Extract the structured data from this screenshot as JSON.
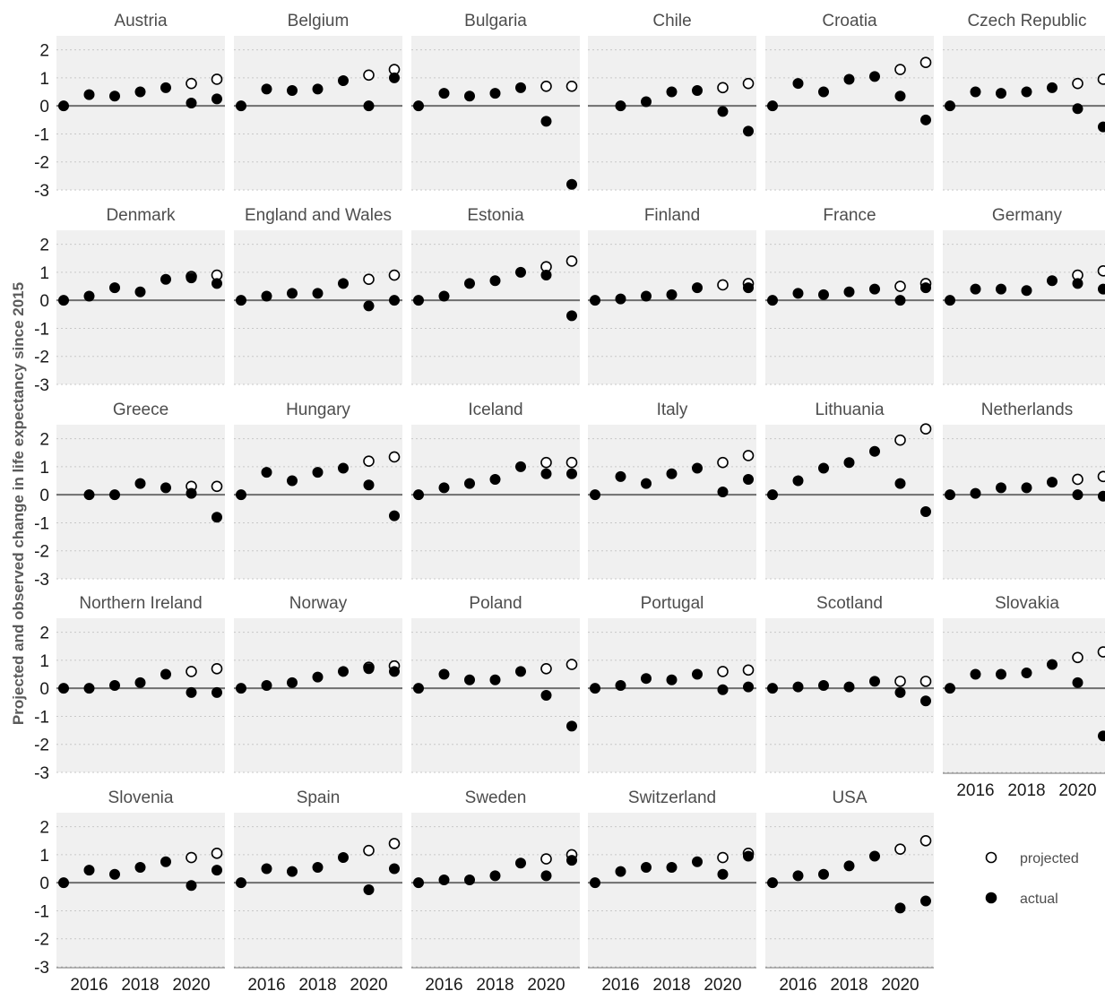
{
  "chart_data": {
    "type": "scatter",
    "title": "",
    "xlabel": "",
    "ylabel": "Projected and observed change in life expectancy since 2015",
    "ylim": [
      -3,
      2.5
    ],
    "yticks": [
      2,
      1,
      0,
      -1,
      -2,
      -3
    ],
    "xlim": [
      2015,
      2021
    ],
    "xticks": [
      2016,
      2018,
      2020
    ],
    "grid": true,
    "legend": {
      "placement": "bottom-right",
      "entries": [
        {
          "name": "projected",
          "style": "open"
        },
        {
          "name": "actual",
          "style": "filled"
        }
      ]
    },
    "x": [
      2015,
      2016,
      2017,
      2018,
      2019,
      2020,
      2021
    ],
    "panels": [
      {
        "name": "Austria",
        "actual": [
          0,
          0.4,
          0.35,
          0.5,
          0.65,
          0.1,
          0.25
        ],
        "projected": [
          null,
          null,
          null,
          null,
          null,
          0.8,
          0.95
        ]
      },
      {
        "name": "Belgium",
        "actual": [
          0,
          0.6,
          0.55,
          0.6,
          0.9,
          0,
          1.0
        ],
        "projected": [
          null,
          null,
          null,
          null,
          null,
          1.1,
          1.3
        ]
      },
      {
        "name": "Bulgaria",
        "actual": [
          0,
          0.45,
          0.35,
          0.45,
          0.65,
          -0.55,
          -2.8
        ],
        "projected": [
          null,
          null,
          null,
          null,
          null,
          0.7,
          0.7
        ]
      },
      {
        "name": "Chile",
        "actual": [
          null,
          0,
          0.15,
          0.5,
          0.55,
          -0.2,
          -0.9
        ],
        "projected": [
          null,
          null,
          null,
          null,
          null,
          0.65,
          0.8
        ]
      },
      {
        "name": "Croatia",
        "actual": [
          0,
          0.8,
          0.5,
          0.95,
          1.05,
          0.35,
          -0.5
        ],
        "projected": [
          null,
          null,
          null,
          null,
          null,
          1.3,
          1.55
        ]
      },
      {
        "name": "Czech Republic",
        "actual": [
          0,
          0.5,
          0.45,
          0.5,
          0.65,
          -0.1,
          -0.75
        ],
        "projected": [
          null,
          null,
          null,
          null,
          null,
          0.8,
          0.95
        ]
      },
      {
        "name": "Denmark",
        "actual": [
          0,
          0.15,
          0.45,
          0.3,
          0.75,
          0.8,
          0.6
        ],
        "projected": [
          null,
          null,
          null,
          null,
          null,
          0.85,
          0.9
        ]
      },
      {
        "name": "England and Wales",
        "actual": [
          0,
          0.15,
          0.25,
          0.25,
          0.6,
          -0.2,
          0
        ],
        "projected": [
          null,
          null,
          null,
          null,
          null,
          0.75,
          0.9
        ]
      },
      {
        "name": "Estonia",
        "actual": [
          0,
          0.15,
          0.6,
          0.7,
          1.0,
          0.9,
          -0.55
        ],
        "projected": [
          null,
          null,
          null,
          null,
          null,
          1.2,
          1.4
        ]
      },
      {
        "name": "Finland",
        "actual": [
          0,
          0.05,
          0.15,
          0.2,
          0.45,
          null,
          0.45
        ],
        "projected": [
          null,
          null,
          null,
          null,
          null,
          0.55,
          0.6
        ]
      },
      {
        "name": "France",
        "actual": [
          0,
          0.25,
          0.2,
          0.3,
          0.4,
          0,
          0.45
        ],
        "projected": [
          null,
          null,
          null,
          null,
          null,
          0.5,
          0.6
        ]
      },
      {
        "name": "Germany",
        "actual": [
          0,
          0.4,
          0.4,
          0.35,
          0.7,
          0.6,
          0.4
        ],
        "projected": [
          null,
          null,
          null,
          null,
          null,
          0.9,
          1.05
        ]
      },
      {
        "name": "Greece",
        "actual": [
          null,
          0,
          0,
          0.4,
          0.25,
          0.05,
          -0.8
        ],
        "projected": [
          null,
          null,
          null,
          null,
          null,
          0.3,
          0.3
        ]
      },
      {
        "name": "Hungary",
        "actual": [
          0,
          0.8,
          0.5,
          0.8,
          0.95,
          0.35,
          -0.75
        ],
        "projected": [
          null,
          null,
          null,
          null,
          null,
          1.2,
          1.35
        ]
      },
      {
        "name": "Iceland",
        "actual": [
          0,
          0.25,
          0.4,
          0.55,
          1.0,
          0.75,
          0.75
        ],
        "projected": [
          null,
          null,
          null,
          null,
          null,
          1.15,
          1.15
        ]
      },
      {
        "name": "Italy",
        "actual": [
          0,
          0.65,
          0.4,
          0.75,
          0.95,
          0.1,
          0.55
        ],
        "projected": [
          null,
          null,
          null,
          null,
          null,
          1.15,
          1.4
        ]
      },
      {
        "name": "Lithuania",
        "actual": [
          0,
          0.5,
          0.95,
          1.15,
          1.55,
          0.4,
          -0.6
        ],
        "projected": [
          null,
          null,
          null,
          null,
          null,
          1.95,
          2.35
        ]
      },
      {
        "name": "Netherlands",
        "actual": [
          0,
          0.05,
          0.25,
          0.25,
          0.45,
          0,
          -0.05
        ],
        "projected": [
          null,
          null,
          null,
          null,
          null,
          0.55,
          0.65
        ]
      },
      {
        "name": "Northern Ireland",
        "actual": [
          0,
          0,
          0.1,
          0.2,
          0.5,
          -0.15,
          -0.15
        ],
        "projected": [
          null,
          null,
          null,
          null,
          null,
          0.6,
          0.7
        ]
      },
      {
        "name": "Norway",
        "actual": [
          0,
          0.1,
          0.2,
          0.4,
          0.6,
          0.7,
          0.6
        ],
        "projected": [
          null,
          null,
          null,
          null,
          null,
          0.75,
          0.8
        ]
      },
      {
        "name": "Poland",
        "actual": [
          0,
          0.5,
          0.3,
          0.3,
          0.6,
          -0.25,
          -1.35
        ],
        "projected": [
          null,
          null,
          null,
          null,
          null,
          0.7,
          0.85
        ]
      },
      {
        "name": "Portugal",
        "actual": [
          0,
          0.1,
          0.35,
          0.3,
          0.5,
          -0.05,
          0.05
        ],
        "projected": [
          null,
          null,
          null,
          null,
          null,
          0.6,
          0.65
        ]
      },
      {
        "name": "Scotland",
        "actual": [
          0,
          0.05,
          0.1,
          0.05,
          0.25,
          -0.15,
          -0.45
        ],
        "projected": [
          null,
          null,
          null,
          null,
          null,
          0.25,
          0.25
        ]
      },
      {
        "name": "Slovakia",
        "actual": [
          0,
          0.5,
          0.5,
          0.55,
          0.85,
          0.2,
          -1.7
        ],
        "projected": [
          null,
          null,
          null,
          null,
          null,
          1.1,
          1.3
        ]
      },
      {
        "name": "Slovenia",
        "actual": [
          0,
          0.45,
          0.3,
          0.55,
          0.75,
          -0.1,
          0.45
        ],
        "projected": [
          null,
          null,
          null,
          null,
          null,
          0.9,
          1.05
        ]
      },
      {
        "name": "Spain",
        "actual": [
          0,
          0.5,
          0.4,
          0.55,
          0.9,
          -0.25,
          0.5
        ],
        "projected": [
          null,
          null,
          null,
          null,
          null,
          1.15,
          1.4
        ]
      },
      {
        "name": "Sweden",
        "actual": [
          0,
          0.1,
          0.1,
          0.25,
          0.7,
          0.25,
          0.8
        ],
        "projected": [
          null,
          null,
          null,
          null,
          null,
          0.85,
          1.0
        ]
      },
      {
        "name": "Switzerland",
        "actual": [
          0,
          0.4,
          0.55,
          0.55,
          0.75,
          0.3,
          0.95
        ],
        "projected": [
          null,
          null,
          null,
          null,
          null,
          0.9,
          1.05
        ]
      },
      {
        "name": "USA",
        "actual": [
          0,
          0.25,
          0.3,
          0.6,
          0.95,
          -0.9,
          -0.65
        ],
        "projected": [
          null,
          null,
          null,
          null,
          null,
          1.2,
          1.5
        ]
      }
    ]
  }
}
